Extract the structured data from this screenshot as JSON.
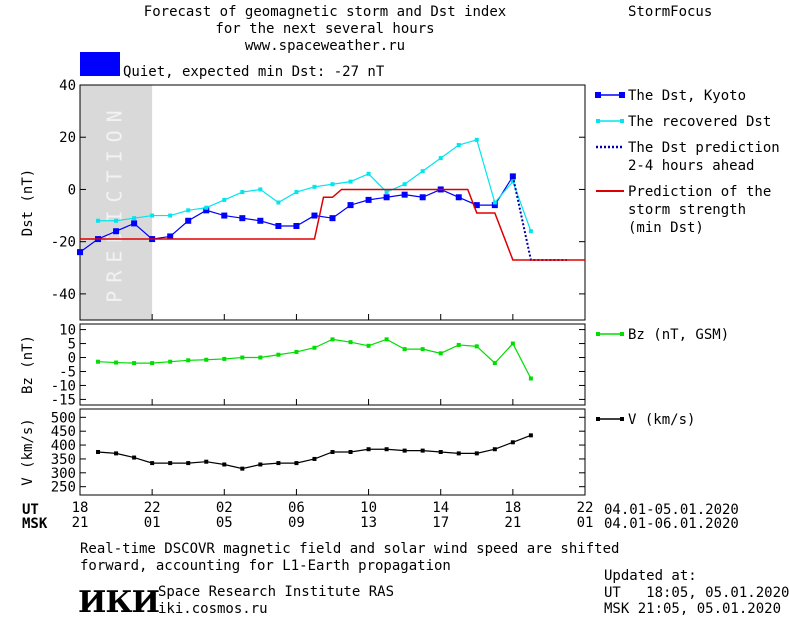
{
  "header": {
    "title_line1": "Forecast of geomagnetic storm and Dst index",
    "title_line2": "for the next several hours",
    "title_line3": "www.spaceweather.ru",
    "brand": "StormFocus",
    "status_text": "Quiet, expected min Dst: -27 nT",
    "status_color": "#0000ff"
  },
  "footer": {
    "ut_label": "UT",
    "msk_label": "MSK",
    "ut_range": "04.01-05.01.2020",
    "msk_range": "04.01-06.01.2020",
    "note_line1": "Real-time DSCOVR magnetic field and solar wind speed are shifted",
    "note_line2": "forward, accounting for L1-Earth propagation",
    "institute": "Space Research Institute RAS",
    "institute_url": "iki.cosmos.ru",
    "logo_text": "ИКИ",
    "updated_label": "Updated at:",
    "updated_ut": "UT   18:05, 05.01.2020",
    "updated_msk": "MSK 21:05, 05.01.2020"
  },
  "chart_data": [
    {
      "type": "line",
      "ylabel": "Dst (nT)",
      "ylim": [
        -50,
        40
      ],
      "yticks": [
        -40,
        -20,
        0,
        20,
        40
      ],
      "xlim": [
        18,
        46
      ],
      "x_ticks_ut": [
        "18",
        "22",
        "02",
        "06",
        "10",
        "14",
        "18",
        "22"
      ],
      "x_ticks_msk": [
        "21",
        "01",
        "05",
        "09",
        "13",
        "17",
        "21",
        "01"
      ],
      "prediction_zone": [
        18,
        22
      ],
      "prediction_label": "PREDICTION",
      "legend": [
        {
          "name": "The Dst, Kyoto",
          "color": "#0000ff"
        },
        {
          "name": "The recovered Dst",
          "color": "#00e5ee"
        },
        {
          "name": "The Dst prediction\n2-4 hours ahead",
          "color": "#0000aa"
        },
        {
          "name": "Prediction of the\nstorm strength\n(min Dst)",
          "color": "#dd0000"
        }
      ],
      "series": [
        {
          "name": "The Dst, Kyoto",
          "color": "#0000ff",
          "x": [
            18,
            19,
            20,
            21,
            22,
            23,
            24,
            25,
            26,
            27,
            28,
            29,
            30,
            31,
            32,
            33,
            34,
            35,
            36,
            37,
            38,
            39,
            40,
            41,
            42
          ],
          "y": [
            -24,
            -19,
            -16,
            -13,
            -19,
            -18,
            -12,
            -8,
            -10,
            -11,
            -12,
            -14,
            -14,
            -10,
            -11,
            -6,
            -4,
            -3,
            -2,
            -3,
            0,
            -3,
            -6,
            -6,
            5
          ]
        },
        {
          "name": "The recovered Dst",
          "color": "#00e5ee",
          "x": [
            19,
            20,
            21,
            22,
            23,
            24,
            25,
            26,
            27,
            28,
            29,
            30,
            31,
            32,
            33,
            34,
            35,
            36,
            37,
            38,
            39,
            40,
            41,
            42,
            43
          ],
          "y": [
            -12,
            -12,
            -11,
            -10,
            -10,
            -8,
            -7,
            -4,
            -1,
            0,
            -5,
            -1,
            1,
            2,
            3,
            6,
            -1,
            2,
            7,
            12,
            17,
            19,
            -5,
            3,
            -16
          ]
        },
        {
          "name": "The Dst prediction 2-4 hours ahead",
          "color": "#0000aa",
          "x": [
            42,
            43,
            44,
            45
          ],
          "y": [
            5,
            -27,
            -27,
            -27
          ]
        },
        {
          "name": "Prediction of the storm strength (min Dst)",
          "color": "#dd0000",
          "x": [
            18,
            31,
            31.5,
            32,
            32.5,
            39.5,
            40,
            41,
            42,
            46
          ],
          "y": [
            -19,
            -19,
            -3,
            -3,
            0,
            0,
            -9,
            -9,
            -27,
            -27
          ]
        }
      ]
    },
    {
      "type": "line",
      "ylabel": "Bz (nT)",
      "ylim": [
        -17,
        12
      ],
      "yticks": [
        -15,
        -10,
        -5,
        0,
        5,
        10
      ],
      "legend": [
        {
          "name": "Bz (nT, GSM)",
          "color": "#00dd00"
        }
      ],
      "series": [
        {
          "name": "Bz (nT, GSM)",
          "color": "#00dd00",
          "x": [
            19,
            20,
            21,
            22,
            23,
            24,
            25,
            26,
            27,
            28,
            29,
            30,
            31,
            32,
            33,
            34,
            35,
            36,
            37,
            38,
            39,
            40,
            41,
            42,
            43
          ],
          "y": [
            -1.5,
            -1.8,
            -2,
            -2,
            -1.5,
            -1,
            -0.8,
            -0.5,
            0,
            0,
            1,
            2,
            3.5,
            6.5,
            5.5,
            4.2,
            6.5,
            3,
            3,
            1.5,
            4.5,
            4,
            -2,
            5,
            -7.5
          ]
        }
      ]
    },
    {
      "type": "line",
      "ylabel": "V (km/s)",
      "ylim": [
        220,
        530
      ],
      "yticks": [
        250,
        300,
        350,
        400,
        450,
        500
      ],
      "legend": [
        {
          "name": "V (km/s)",
          "color": "#000000"
        }
      ],
      "series": [
        {
          "name": "V (km/s)",
          "color": "#000000",
          "x": [
            19,
            20,
            21,
            22,
            23,
            24,
            25,
            26,
            27,
            28,
            29,
            30,
            31,
            32,
            33,
            34,
            35,
            36,
            37,
            38,
            39,
            40,
            41,
            42,
            43
          ],
          "y": [
            375,
            370,
            355,
            335,
            335,
            335,
            340,
            330,
            315,
            330,
            335,
            335,
            350,
            375,
            375,
            385,
            385,
            380,
            380,
            375,
            370,
            370,
            385,
            410,
            435
          ]
        }
      ]
    }
  ]
}
